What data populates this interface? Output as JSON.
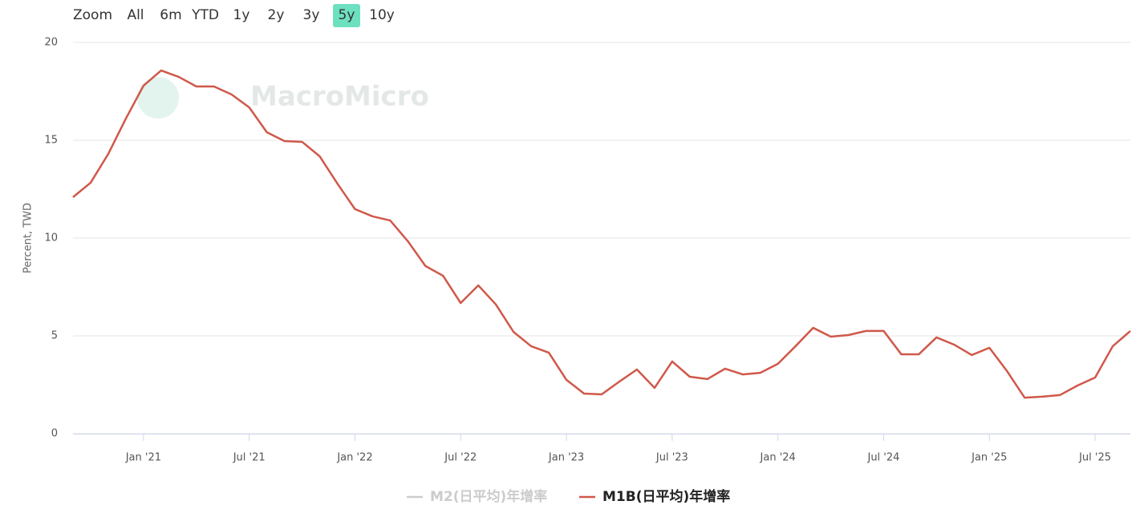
{
  "chart_data": {
    "type": "line",
    "range_selector": {
      "label": "Zoom",
      "buttons": [
        "All",
        "6m",
        "YTD",
        "1y",
        "2y",
        "3y",
        "5y",
        "10y"
      ],
      "selected": "5y"
    },
    "watermark": "MacroMicro",
    "y_label": "Percent, TWD",
    "ylim": [
      0,
      20
    ],
    "yticks": [
      0,
      5,
      10,
      15,
      20
    ],
    "grid": true,
    "xlim": [
      "2020-09",
      "2025-09"
    ],
    "xticks": [
      {
        "value": "2021-01",
        "label": "Jan '21"
      },
      {
        "value": "2021-07",
        "label": "Jul '21"
      },
      {
        "value": "2022-01",
        "label": "Jan '22"
      },
      {
        "value": "2022-07",
        "label": "Jul '22"
      },
      {
        "value": "2023-01",
        "label": "Jan '23"
      },
      {
        "value": "2023-07",
        "label": "Jul '23"
      },
      {
        "value": "2024-01",
        "label": "Jan '24"
      },
      {
        "value": "2024-07",
        "label": "Jul '24"
      },
      {
        "value": "2025-01",
        "label": "Jan '25"
      },
      {
        "value": "2025-07",
        "label": "Jul '25"
      }
    ],
    "x": [
      "2020-09",
      "2020-10",
      "2020-11",
      "2020-12",
      "2021-01",
      "2021-02",
      "2021-03",
      "2021-04",
      "2021-05",
      "2021-06",
      "2021-07",
      "2021-08",
      "2021-09",
      "2021-10",
      "2021-11",
      "2021-12",
      "2022-01",
      "2022-02",
      "2022-03",
      "2022-04",
      "2022-05",
      "2022-06",
      "2022-07",
      "2022-08",
      "2022-09",
      "2022-10",
      "2022-11",
      "2022-12",
      "2023-01",
      "2023-02",
      "2023-03",
      "2023-04",
      "2023-05",
      "2023-06",
      "2023-07",
      "2023-08",
      "2023-09",
      "2023-10",
      "2023-11",
      "2023-12",
      "2024-01",
      "2024-02",
      "2024-03",
      "2024-04",
      "2024-05",
      "2024-06",
      "2024-07",
      "2024-08",
      "2024-09",
      "2024-10",
      "2024-11",
      "2024-12",
      "2025-01",
      "2025-02",
      "2025-03",
      "2025-04",
      "2025-05",
      "2025-06",
      "2025-07",
      "2025-08",
      "2025-09"
    ],
    "series": [
      {
        "name": "M2(日平均)年增率",
        "color": "#cccccc",
        "visible": false
      },
      {
        "name": "M1B(日平均)年增率",
        "color": "#d0584a",
        "visible": true,
        "values": [
          12.09,
          12.83,
          14.3,
          16.11,
          17.79,
          18.57,
          18.24,
          17.75,
          17.75,
          17.34,
          16.68,
          15.41,
          14.96,
          14.92,
          14.18,
          12.79,
          11.48,
          11.11,
          10.9,
          9.84,
          8.57,
          8.07,
          6.68,
          7.58,
          6.6,
          5.2,
          4.47,
          4.14,
          2.75,
          2.05,
          2.01,
          2.66,
          3.28,
          2.34,
          3.69,
          2.91,
          2.79,
          3.32,
          3.03,
          3.11,
          3.57,
          4.47,
          5.41,
          4.96,
          5.04,
          5.25,
          5.25,
          4.06,
          4.06,
          4.92,
          4.55,
          4.02,
          4.39,
          3.2,
          1.84,
          1.89,
          1.97,
          2.46,
          2.87,
          4.47,
          5.25
        ]
      }
    ]
  }
}
